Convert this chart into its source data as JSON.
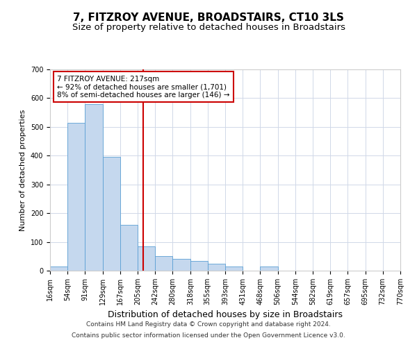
{
  "title": "7, FITZROY AVENUE, BROADSTAIRS, CT10 3LS",
  "subtitle": "Size of property relative to detached houses in Broadstairs",
  "xlabel": "Distribution of detached houses by size in Broadstairs",
  "ylabel": "Number of detached properties",
  "bar_edges": [
    16,
    54,
    91,
    129,
    167,
    205,
    242,
    280,
    318,
    355,
    393,
    431,
    468,
    506,
    544,
    582,
    619,
    657,
    695,
    732,
    770
  ],
  "bar_heights": [
    15,
    515,
    580,
    395,
    160,
    85,
    50,
    40,
    35,
    25,
    15,
    0,
    15,
    0,
    0,
    0,
    0,
    0,
    0,
    0
  ],
  "bar_color": "#c5d8ee",
  "bar_edge_color": "#5a9fd4",
  "property_line_x": 217,
  "property_line_color": "#cc0000",
  "annotation_text": "7 FITZROY AVENUE: 217sqm\n← 92% of detached houses are smaller (1,701)\n8% of semi-detached houses are larger (146) →",
  "annotation_box_color": "#cc0000",
  "annotation_text_color": "#000000",
  "ylim": [
    0,
    700
  ],
  "yticks": [
    0,
    100,
    200,
    300,
    400,
    500,
    600,
    700
  ],
  "tick_labels": [
    "16sqm",
    "54sqm",
    "91sqm",
    "129sqm",
    "167sqm",
    "205sqm",
    "242sqm",
    "280sqm",
    "318sqm",
    "355sqm",
    "393sqm",
    "431sqm",
    "468sqm",
    "506sqm",
    "544sqm",
    "582sqm",
    "619sqm",
    "657sqm",
    "695sqm",
    "732sqm",
    "770sqm"
  ],
  "footer_line1": "Contains HM Land Registry data © Crown copyright and database right 2024.",
  "footer_line2": "Contains public sector information licensed under the Open Government Licence v3.0.",
  "background_color": "#ffffff",
  "grid_color": "#d0d8e8",
  "title_fontsize": 11,
  "subtitle_fontsize": 9.5,
  "xlabel_fontsize": 9,
  "ylabel_fontsize": 8,
  "tick_fontsize": 7,
  "footer_fontsize": 6.5
}
